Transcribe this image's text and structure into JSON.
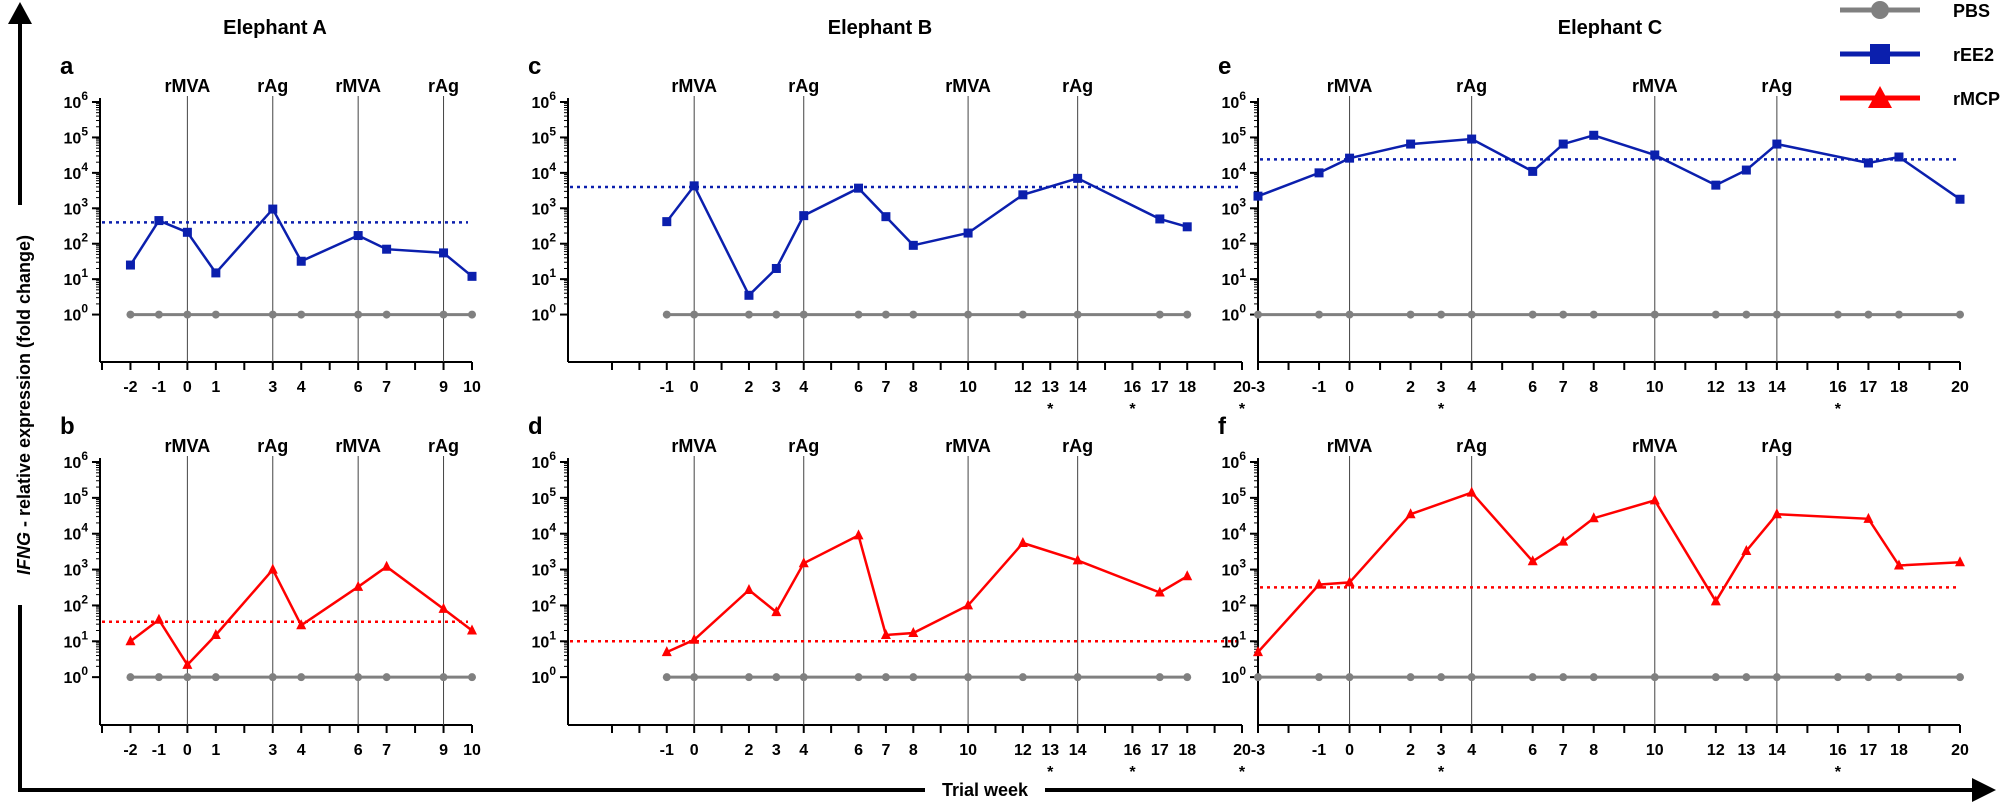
{
  "figure": {
    "ylabel_italic": "IFNG",
    "ylabel_rest": " - relative expression (fold change)",
    "xlabel": "Trial week"
  },
  "legend": [
    {
      "name": "PBS",
      "color": "#808080",
      "marker": "circle"
    },
    {
      "name": "rEE2",
      "color": "#0b1fad",
      "marker": "square"
    },
    {
      "name": "rMCP",
      "color": "#ff0000",
      "marker": "triangle"
    }
  ],
  "column_titles": [
    "Elephant A",
    "Elephant B",
    "Elephant C"
  ],
  "chart_data": [
    {
      "panel": "a",
      "type": "line",
      "column": 0,
      "row": 0,
      "scale": "log10",
      "ylim": [
        0.1,
        1000000
      ],
      "x_ticks": [
        "-2",
        "-1",
        "0",
        "1",
        "3",
        "4",
        "6",
        "7",
        "9",
        "10"
      ],
      "x_tick_values": [
        -2,
        -1,
        0,
        1,
        3,
        4,
        6,
        7,
        9,
        10
      ],
      "xlim": [
        -3,
        10
      ],
      "asterisk_weeks": [],
      "events": [
        {
          "label": "rMVA",
          "week": 0
        },
        {
          "label": "rAg",
          "week": 3
        },
        {
          "label": "rMVA",
          "week": 6
        },
        {
          "label": "rAg",
          "week": 9
        }
      ],
      "threshold": 400,
      "series": [
        {
          "name": "PBS",
          "x": [
            -2,
            -1,
            0,
            1,
            3,
            4,
            6,
            7,
            9,
            10
          ],
          "y": [
            1,
            1,
            1,
            1,
            1,
            1,
            1,
            1,
            1,
            1
          ]
        },
        {
          "name": "rEE2",
          "x": [
            -2,
            -1,
            0,
            1,
            3,
            4,
            6,
            7,
            9,
            10
          ],
          "y": [
            25,
            450,
            210,
            15,
            950,
            32,
            170,
            70,
            55,
            12
          ]
        }
      ]
    },
    {
      "panel": "b",
      "type": "line",
      "column": 0,
      "row": 1,
      "scale": "log10",
      "ylim": [
        0.1,
        1000000
      ],
      "x_ticks": [
        "-2",
        "-1",
        "0",
        "1",
        "3",
        "4",
        "6",
        "7",
        "9",
        "10"
      ],
      "x_tick_values": [
        -2,
        -1,
        0,
        1,
        3,
        4,
        6,
        7,
        9,
        10
      ],
      "xlim": [
        -3,
        10
      ],
      "asterisk_weeks": [],
      "events": [
        {
          "label": "rMVA",
          "week": 0
        },
        {
          "label": "rAg",
          "week": 3
        },
        {
          "label": "rMVA",
          "week": 6
        },
        {
          "label": "rAg",
          "week": 9
        }
      ],
      "threshold": 35,
      "series": [
        {
          "name": "PBS",
          "x": [
            -2,
            -1,
            0,
            1,
            3,
            4,
            6,
            7,
            9,
            10
          ],
          "y": [
            1,
            1,
            1,
            1,
            1,
            1,
            1,
            1,
            1,
            1
          ]
        },
        {
          "name": "rMCP",
          "x": [
            -2,
            -1,
            0,
            1,
            3,
            4,
            6,
            7,
            9,
            10
          ],
          "y": [
            10,
            40,
            2.2,
            15,
            1000,
            28,
            330,
            1200,
            80,
            20
          ]
        }
      ]
    },
    {
      "panel": "c",
      "type": "line",
      "column": 1,
      "row": 0,
      "scale": "log10",
      "ylim": [
        0.1,
        1000000
      ],
      "x_ticks": [
        "-1",
        "0",
        "2",
        "3",
        "4",
        "6",
        "7",
        "8",
        "10",
        "12",
        "13",
        "14",
        "16",
        "17",
        "18",
        "20"
      ],
      "x_tick_values": [
        -1,
        0,
        2,
        3,
        4,
        6,
        7,
        8,
        10,
        12,
        13,
        14,
        16,
        17,
        18,
        20
      ],
      "xlim": [
        -3,
        20
      ],
      "asterisk_weeks": [
        13,
        16,
        20
      ],
      "events": [
        {
          "label": "rMVA",
          "week": 0
        },
        {
          "label": "rAg",
          "week": 4
        },
        {
          "label": "rMVA",
          "week": 10
        },
        {
          "label": "rAg",
          "week": 14
        }
      ],
      "threshold": 4000,
      "series": [
        {
          "name": "PBS",
          "x": [
            -1,
            0,
            2,
            3,
            4,
            6,
            7,
            8,
            10,
            12,
            14,
            17,
            18
          ],
          "y": [
            1,
            1,
            1,
            1,
            1,
            1,
            1,
            1,
            1,
            1,
            1,
            1,
            1
          ]
        },
        {
          "name": "rEE2",
          "x": [
            -1,
            0,
            2,
            3,
            4,
            6,
            7,
            8,
            10,
            12,
            14,
            17,
            18
          ],
          "y": [
            420,
            4300,
            3.5,
            20,
            620,
            3700,
            580,
            90,
            200,
            2400,
            7000,
            500,
            300
          ]
        }
      ]
    },
    {
      "panel": "d",
      "type": "line",
      "column": 1,
      "row": 1,
      "scale": "log10",
      "ylim": [
        0.1,
        1000000
      ],
      "x_ticks": [
        "-1",
        "0",
        "2",
        "3",
        "4",
        "6",
        "7",
        "8",
        "10",
        "12",
        "13",
        "14",
        "16",
        "17",
        "18",
        "20"
      ],
      "x_tick_values": [
        -1,
        0,
        2,
        3,
        4,
        6,
        7,
        8,
        10,
        12,
        13,
        14,
        16,
        17,
        18,
        20
      ],
      "xlim": [
        -3,
        20
      ],
      "asterisk_weeks": [
        13,
        16,
        20
      ],
      "events": [
        {
          "label": "rMVA",
          "week": 0
        },
        {
          "label": "rAg",
          "week": 4
        },
        {
          "label": "rMVA",
          "week": 10
        },
        {
          "label": "rAg",
          "week": 14
        }
      ],
      "threshold": 10,
      "series": [
        {
          "name": "PBS",
          "x": [
            -1,
            0,
            2,
            3,
            4,
            6,
            7,
            8,
            10,
            12,
            14,
            17,
            18
          ],
          "y": [
            1,
            1,
            1,
            1,
            1,
            1,
            1,
            1,
            1,
            1,
            1,
            1,
            1
          ]
        },
        {
          "name": "rMCP",
          "x": [
            -1,
            0,
            2,
            3,
            4,
            6,
            7,
            8,
            10,
            12,
            14,
            17,
            18
          ],
          "y": [
            5,
            11,
            270,
            65,
            1500,
            9000,
            15,
            17,
            100,
            5500,
            1800,
            230,
            650
          ]
        }
      ]
    },
    {
      "panel": "e",
      "type": "line",
      "column": 2,
      "row": 0,
      "scale": "log10",
      "ylim": [
        0.1,
        1000000
      ],
      "x_ticks": [
        "-3",
        "-1",
        "0",
        "2",
        "3",
        "4",
        "6",
        "7",
        "8",
        "10",
        "12",
        "13",
        "14",
        "16",
        "17",
        "18",
        "20"
      ],
      "x_tick_values": [
        -3,
        -1,
        0,
        2,
        3,
        4,
        6,
        7,
        8,
        10,
        12,
        13,
        14,
        16,
        17,
        18,
        20
      ],
      "xlim": [
        -3,
        20
      ],
      "asterisk_weeks": [
        3,
        16
      ],
      "events": [
        {
          "label": "rMVA",
          "week": 0
        },
        {
          "label": "rAg",
          "week": 4
        },
        {
          "label": "rMVA",
          "week": 10
        },
        {
          "label": "rAg",
          "week": 14
        }
      ],
      "threshold": 24000,
      "series": [
        {
          "name": "PBS",
          "x": [
            -3,
            -1,
            0,
            2,
            3,
            4,
            6,
            7,
            8,
            10,
            12,
            13,
            14,
            16,
            17,
            18,
            20
          ],
          "y": [
            1,
            1,
            1,
            1,
            1,
            1,
            1,
            1,
            1,
            1,
            1,
            1,
            1,
            1,
            1,
            1,
            1
          ]
        },
        {
          "name": "rEE2",
          "x": [
            -3,
            -1,
            0,
            2,
            4,
            6,
            7,
            8,
            10,
            12,
            13,
            14,
            17,
            18,
            20
          ],
          "y": [
            2200,
            10000,
            26000,
            65000,
            90000,
            11000,
            65000,
            115000,
            32000,
            4500,
            12000,
            65000,
            19000,
            28000,
            1800
          ]
        }
      ]
    },
    {
      "panel": "f",
      "type": "line",
      "column": 2,
      "row": 1,
      "scale": "log10",
      "ylim": [
        0.1,
        1000000
      ],
      "x_ticks": [
        "-3",
        "-1",
        "0",
        "2",
        "3",
        "4",
        "6",
        "7",
        "8",
        "10",
        "12",
        "13",
        "14",
        "16",
        "17",
        "18",
        "20"
      ],
      "x_tick_values": [
        -3,
        -1,
        0,
        2,
        3,
        4,
        6,
        7,
        8,
        10,
        12,
        13,
        14,
        16,
        17,
        18,
        20
      ],
      "xlim": [
        -3,
        20
      ],
      "asterisk_weeks": [
        3,
        16
      ],
      "events": [
        {
          "label": "rMVA",
          "week": 0
        },
        {
          "label": "rAg",
          "week": 4
        },
        {
          "label": "rMVA",
          "week": 10
        },
        {
          "label": "rAg",
          "week": 14
        }
      ],
      "threshold": 320,
      "series": [
        {
          "name": "PBS",
          "x": [
            -3,
            -1,
            0,
            2,
            3,
            4,
            6,
            7,
            8,
            10,
            12,
            13,
            14,
            16,
            17,
            18,
            20
          ],
          "y": [
            1,
            1,
            1,
            1,
            1,
            1,
            1,
            1,
            1,
            1,
            1,
            1,
            1,
            1,
            1,
            1,
            1
          ]
        },
        {
          "name": "rMCP",
          "x": [
            -3,
            -1,
            0,
            2,
            4,
            6,
            7,
            8,
            10,
            12,
            13,
            14,
            17,
            18,
            20
          ],
          "y": [
            5,
            380,
            440,
            35000,
            140000,
            1700,
            6000,
            27000,
            85000,
            130,
            3300,
            35000,
            26000,
            1300,
            1600
          ]
        }
      ]
    }
  ]
}
